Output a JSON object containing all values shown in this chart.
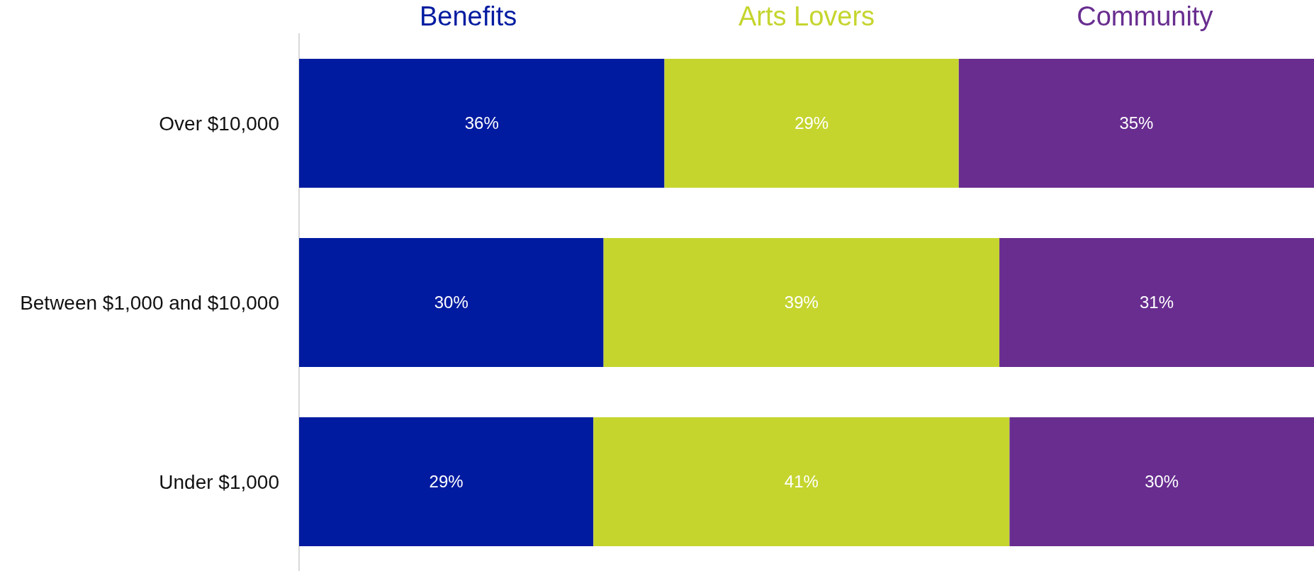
{
  "chart_data": {
    "type": "bar",
    "orientation": "horizontal",
    "stacked": true,
    "categories": [
      "Over $10,000",
      "Between $1,000 and $10,000",
      "Under $1,000"
    ],
    "series": [
      {
        "name": "Benefits",
        "color": "#001ba0",
        "values": [
          36,
          30,
          29
        ],
        "value_labels": [
          "36%",
          "30%",
          "29%"
        ]
      },
      {
        "name": "Arts Lovers",
        "color": "#c5d52e",
        "values": [
          29,
          39,
          41
        ],
        "value_labels": [
          "29%",
          "39%",
          "41%"
        ]
      },
      {
        "name": "Community",
        "color": "#682d8f",
        "values": [
          35,
          31,
          30
        ],
        "value_labels": [
          "35%",
          "31%",
          "30%"
        ]
      }
    ],
    "legend": "top"
  }
}
